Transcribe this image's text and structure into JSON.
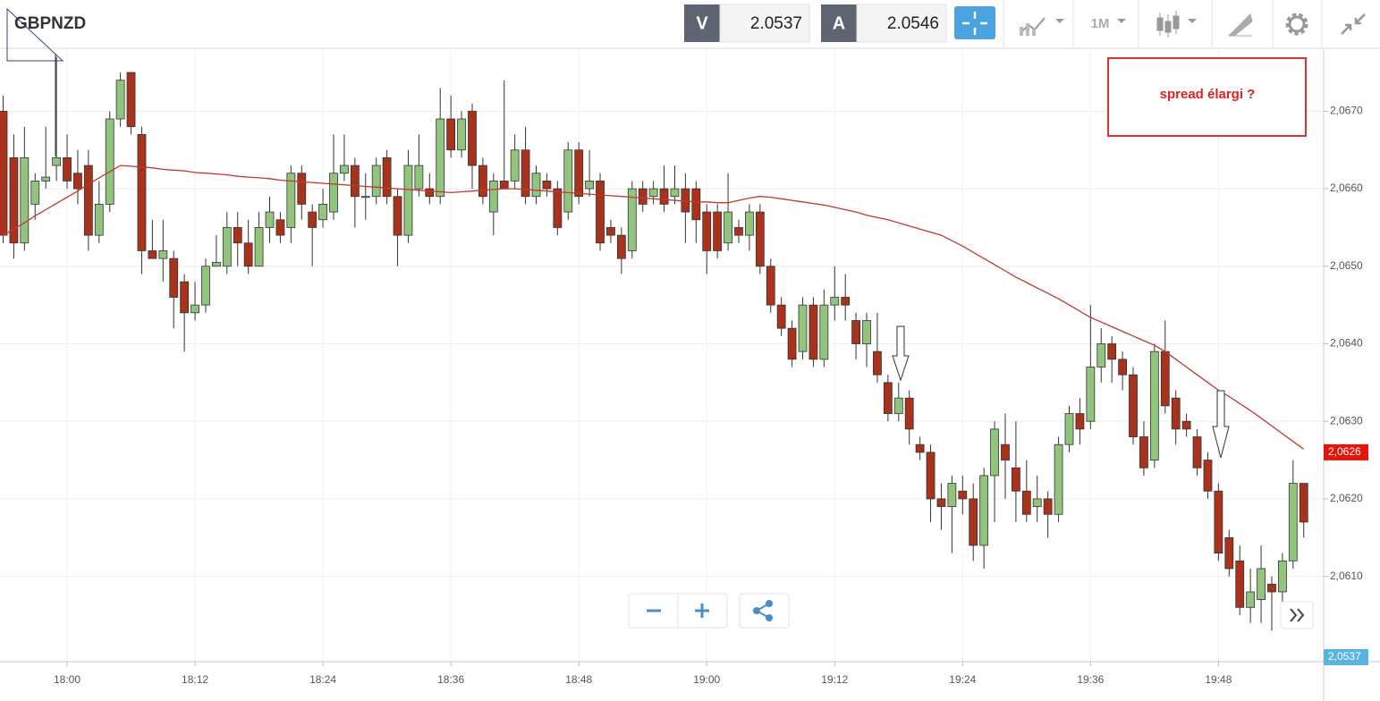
{
  "toolbar": {
    "symbol": "GBPNZD",
    "sell_label": "V",
    "sell_price": "2.0537",
    "buy_label": "A",
    "buy_price": "2.0546",
    "timeframe": "1M"
  },
  "chart_data": {
    "type": "candlestick",
    "annotation": "spread élargi ?",
    "up_color": "#93c47d",
    "down_color": "#a8321c",
    "ma_color": "#c0392b",
    "ylim": [
      2.0599,
      2.0678
    ],
    "yticks": [
      {
        "value": 2.061,
        "label": "2,0610"
      },
      {
        "value": 2.062,
        "label": "2,0620"
      },
      {
        "value": 2.063,
        "label": "2,0630"
      },
      {
        "value": 2.064,
        "label": "2,0640"
      },
      {
        "value": 2.065,
        "label": "2,0650"
      },
      {
        "value": 2.066,
        "label": "2,0660"
      },
      {
        "value": 2.067,
        "label": "2,0670"
      }
    ],
    "grid": true,
    "xticks": [
      "18:00",
      "18:12",
      "18:24",
      "18:36",
      "18:48",
      "19:00",
      "19:12",
      "19:24",
      "19:36",
      "19:48"
    ],
    "price_labels": [
      {
        "value": 2.0626,
        "label": "2,0626",
        "color": "#e8140c"
      },
      {
        "value": 2.0537,
        "label": "2,0537",
        "color": "#5ab4e0"
      }
    ],
    "x": [
      "17:54",
      "17:55",
      "17:56",
      "17:57",
      "17:58",
      "17:59",
      "18:00",
      "18:01",
      "18:02",
      "18:03",
      "18:04",
      "18:05",
      "18:06",
      "18:07",
      "18:08",
      "18:09",
      "18:10",
      "18:11",
      "18:12",
      "18:13",
      "18:14",
      "18:15",
      "18:16",
      "18:17",
      "18:18",
      "18:19",
      "18:20",
      "18:21",
      "18:22",
      "18:23",
      "18:24",
      "18:25",
      "18:26",
      "18:27",
      "18:28",
      "18:29",
      "18:30",
      "18:31",
      "18:32",
      "18:33",
      "18:34",
      "18:35",
      "18:36",
      "18:37",
      "18:38",
      "18:39",
      "18:40",
      "18:41",
      "18:42",
      "18:43",
      "18:44",
      "18:45",
      "18:46",
      "18:47",
      "18:48",
      "18:49",
      "18:50",
      "18:51",
      "18:52",
      "18:53",
      "18:54",
      "18:55",
      "18:56",
      "18:57",
      "18:58",
      "18:59",
      "19:00",
      "19:01",
      "19:02",
      "19:03",
      "19:04",
      "19:05",
      "19:06",
      "19:07",
      "19:08",
      "19:09",
      "19:10",
      "19:11",
      "19:12",
      "19:13",
      "19:14",
      "19:15",
      "19:16",
      "19:17",
      "19:18",
      "19:19",
      "19:20",
      "19:21",
      "19:22",
      "19:23",
      "19:24",
      "19:25",
      "19:26",
      "19:27",
      "19:28",
      "19:29",
      "19:30",
      "19:31",
      "19:32",
      "19:33",
      "19:34",
      "19:35",
      "19:36",
      "19:37",
      "19:38",
      "19:39",
      "19:40",
      "19:41",
      "19:42",
      "19:43",
      "19:44",
      "19:45",
      "19:46",
      "19:47",
      "19:48",
      "19:49",
      "19:50",
      "19:51",
      "19:52",
      "19:53",
      "19:54",
      "19:55",
      "19:56"
    ],
    "open": [
      2.067,
      2.0664,
      2.0653,
      2.0658,
      2.0661,
      2.0663,
      2.0664,
      2.0662,
      2.0663,
      2.0654,
      2.0658,
      2.0669,
      2.0675,
      2.0667,
      2.0652,
      2.0651,
      2.0651,
      2.0648,
      2.0644,
      2.0645,
      2.065,
      2.065,
      2.0655,
      2.0653,
      2.065,
      2.0655,
      2.0656,
      2.0655,
      2.0662,
      2.0657,
      2.0656,
      2.0657,
      2.0662,
      2.0663,
      2.0659,
      2.0659,
      2.0664,
      2.0659,
      2.0654,
      2.066,
      2.066,
      2.0659,
      2.0669,
      2.0665,
      2.067,
      2.0663,
      2.0657,
      2.0661,
      2.0661,
      2.0665,
      2.0659,
      2.0661,
      2.066,
      2.0657,
      2.0665,
      2.066,
      2.0661,
      2.0655,
      2.0654,
      2.0652,
      2.066,
      2.0659,
      2.066,
      2.0659,
      2.066,
      2.066,
      2.0657,
      2.0657,
      2.0653,
      2.0655,
      2.0654,
      2.0657,
      2.065,
      2.0645,
      2.0642,
      2.0639,
      2.0645,
      2.0638,
      2.0645,
      2.0646,
      2.0643,
      2.064,
      2.0639,
      2.0635,
      2.0631,
      2.0633,
      2.0627,
      2.0626,
      2.062,
      2.0619,
      2.0621,
      2.062,
      2.0614,
      2.0623,
      2.0627,
      2.0624,
      2.0621,
      2.0619,
      2.062,
      2.0618,
      2.0627,
      2.0631,
      2.063,
      2.0637,
      2.064,
      2.0638,
      2.0636,
      2.0628,
      2.0625,
      2.0639,
      2.0633,
      2.063,
      2.0628,
      2.0625,
      2.0621,
      2.0615,
      2.0612,
      2.0606,
      2.0607,
      2.0609,
      2.0608,
      2.0612,
      2.0622
    ],
    "high": [
      2.0672,
      2.0667,
      2.0668,
      2.0662,
      2.0668,
      2.0677,
      2.0667,
      2.0665,
      2.0665,
      2.0661,
      2.067,
      2.0675,
      2.0675,
      2.0668,
      2.0656,
      2.0656,
      2.0652,
      2.0649,
      2.0648,
      2.0651,
      2.0654,
      2.0657,
      2.0657,
      2.0656,
      2.0657,
      2.0659,
      2.0657,
      2.0663,
      2.0663,
      2.0658,
      2.066,
      2.0667,
      2.0667,
      2.0664,
      2.0662,
      2.0664,
      2.0665,
      2.066,
      2.0665,
      2.0667,
      2.0662,
      2.0673,
      2.0672,
      2.067,
      2.0671,
      2.0664,
      2.0662,
      2.0674,
      2.0667,
      2.0668,
      2.0663,
      2.0662,
      2.0661,
      2.0666,
      2.0666,
      2.0665,
      2.0662,
      2.0656,
      2.0655,
      2.0661,
      2.0661,
      2.0661,
      2.0663,
      2.0663,
      2.0662,
      2.0661,
      2.0658,
      2.0658,
      2.0662,
      2.0656,
      2.0658,
      2.0658,
      2.0651,
      2.0646,
      2.0643,
      2.0646,
      2.0646,
      2.0647,
      2.065,
      2.0649,
      2.0644,
      2.0644,
      2.0644,
      2.0636,
      2.0635,
      2.0634,
      2.0628,
      2.0627,
      2.0622,
      2.0623,
      2.0623,
      2.0622,
      2.0624,
      2.063,
      2.0631,
      2.063,
      2.0625,
      2.0623,
      2.0621,
      2.0628,
      2.0632,
      2.0633,
      2.0645,
      2.0642,
      2.0641,
      2.0639,
      2.0637,
      2.063,
      2.064,
      2.0643,
      2.0634,
      2.0631,
      2.0629,
      2.0626,
      2.0622,
      2.0616,
      2.0614,
      2.0611,
      2.0614,
      2.061,
      2.0613,
      2.0625,
      2.0622
    ],
    "low": [
      2.0653,
      2.0651,
      2.0652,
      2.0656,
      2.066,
      2.0661,
      2.066,
      2.0658,
      2.0652,
      2.0653,
      2.0657,
      2.0668,
      2.0667,
      2.0649,
      2.0651,
      2.0648,
      2.0642,
      2.0639,
      2.0643,
      2.0644,
      2.065,
      2.0649,
      2.065,
      2.0649,
      2.065,
      2.0653,
      2.0653,
      2.0653,
      2.0656,
      2.065,
      2.0655,
      2.0656,
      2.0661,
      2.0655,
      2.0656,
      2.0658,
      2.0658,
      2.065,
      2.0653,
      2.0659,
      2.0658,
      2.0658,
      2.0664,
      2.0664,
      2.066,
      2.0658,
      2.0654,
      2.066,
      2.066,
      2.0658,
      2.0658,
      2.0659,
      2.0654,
      2.0656,
      2.0658,
      2.0659,
      2.0652,
      2.0653,
      2.0649,
      2.0651,
      2.0657,
      2.0658,
      2.0657,
      2.0658,
      2.0653,
      2.0653,
      2.0649,
      2.0651,
      2.0652,
      2.0653,
      2.0652,
      2.0649,
      2.0644,
      2.0641,
      2.0637,
      2.0638,
      2.0637,
      2.0637,
      2.0643,
      2.0643,
      2.0638,
      2.0637,
      2.0635,
      2.063,
      2.063,
      2.0627,
      2.0625,
      2.0617,
      2.0616,
      2.0613,
      2.0618,
      2.0612,
      2.0611,
      2.0617,
      2.062,
      2.0617,
      2.0617,
      2.0617,
      2.0615,
      2.0617,
      2.0626,
      2.0627,
      2.0629,
      2.0635,
      2.0635,
      2.0634,
      2.0627,
      2.0623,
      2.0624,
      2.0631,
      2.0627,
      2.0628,
      2.0623,
      2.062,
      2.0612,
      2.061,
      2.0605,
      2.0604,
      2.0604,
      2.0603,
      2.0605,
      2.0611,
      2.0615
    ],
    "close": [
      2.0654,
      2.0653,
      2.0664,
      2.0661,
      2.06615,
      2.0664,
      2.0661,
      2.066,
      2.0654,
      2.0658,
      2.0669,
      2.0674,
      2.0668,
      2.0652,
      2.0651,
      2.0652,
      2.0646,
      2.0644,
      2.0645,
      2.065,
      2.06505,
      2.0655,
      2.0653,
      2.065,
      2.0655,
      2.0657,
      2.0654,
      2.0662,
      2.0658,
      2.0655,
      2.0658,
      2.0662,
      2.0663,
      2.0659,
      2.0659,
      2.0663,
      2.0659,
      2.0654,
      2.0663,
      2.0663,
      2.0659,
      2.0669,
      2.0665,
      2.0669,
      2.0663,
      2.0659,
      2.0661,
      2.066,
      2.0665,
      2.0659,
      2.0662,
      2.066,
      2.0655,
      2.0665,
      2.0659,
      2.0661,
      2.0653,
      2.0654,
      2.0651,
      2.066,
      2.0658,
      2.066,
      2.0658,
      2.066,
      2.0657,
      2.0656,
      2.0652,
      2.0652,
      2.0657,
      2.0654,
      2.0657,
      2.065,
      2.0645,
      2.0642,
      2.0638,
      2.0645,
      2.0638,
      2.0645,
      2.0646,
      2.0645,
      2.064,
      2.0643,
      2.0636,
      2.0631,
      2.0633,
      2.0629,
      2.0626,
      2.062,
      2.0619,
      2.0622,
      2.062,
      2.0614,
      2.0623,
      2.0629,
      2.0625,
      2.0621,
      2.0618,
      2.062,
      2.0618,
      2.0627,
      2.0631,
      2.0629,
      2.0637,
      2.064,
      2.0638,
      2.0636,
      2.0628,
      2.0624,
      2.0639,
      2.0632,
      2.0629,
      2.0629,
      2.0624,
      2.0621,
      2.0613,
      2.0611,
      2.0606,
      2.0608,
      2.0611,
      2.0608,
      2.0612,
      2.0622,
      2.0617
    ],
    "ma": [
      2.0654,
      2.06548,
      2.06556,
      2.06565,
      2.06573,
      2.06581,
      2.06589,
      2.06597,
      2.06606,
      2.06614,
      2.06622,
      2.0663,
      2.06629,
      2.06628,
      2.06627,
      2.06625,
      2.06624,
      2.06623,
      2.06621,
      2.0662,
      2.06619,
      2.06618,
      2.06616,
      2.06615,
      2.06614,
      2.06613,
      2.06611,
      2.0661,
      2.06609,
      2.06608,
      2.06607,
      2.06606,
      2.06605,
      2.06604,
      2.06603,
      2.06602,
      2.06601,
      2.066,
      2.06599,
      2.06598,
      2.06597,
      2.06596,
      2.06595,
      2.06596,
      2.06597,
      2.06598,
      2.06599,
      2.066,
      2.066,
      2.06599,
      2.06598,
      2.06597,
      2.06596,
      2.06595,
      2.06594,
      2.06593,
      2.06592,
      2.06591,
      2.0659,
      2.06589,
      2.06588,
      2.06587,
      2.06586,
      2.06585,
      2.06584,
      2.06583,
      2.06583,
      2.06582,
      2.06582,
      2.06585,
      2.06588,
      2.0659,
      2.06589,
      2.06587,
      2.06585,
      2.06583,
      2.06581,
      2.06579,
      2.06576,
      2.06573,
      2.0657,
      2.06566,
      2.06563,
      2.0656,
      2.06556,
      2.06552,
      2.06548,
      2.06544,
      2.0654,
      2.06533,
      2.06526,
      2.06518,
      2.0651,
      2.06502,
      2.06494,
      2.06486,
      2.06479,
      2.06472,
      2.06465,
      2.06458,
      2.0645,
      2.06442,
      2.06434,
      2.06428,
      2.06422,
      2.06416,
      2.0641,
      2.06404,
      2.06398,
      2.0639,
      2.0638,
      2.0637,
      2.0636,
      2.0635,
      2.0634,
      2.06332,
      2.06323,
      2.06314,
      2.06304,
      2.06294,
      2.06284,
      2.06274,
      2.06264
    ]
  }
}
